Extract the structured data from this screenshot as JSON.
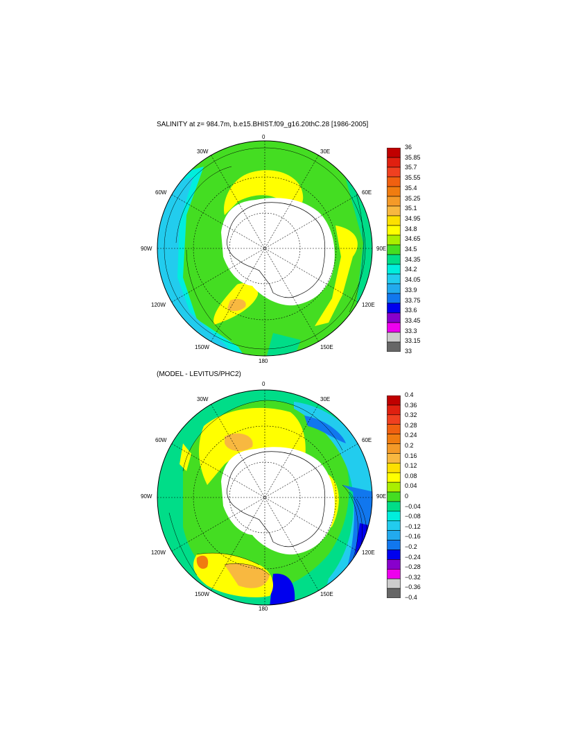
{
  "panel_top": {
    "title": "SALINITY at z= 984.7m, b.e15.BHIST.f09_g16.20thC.28 [1986-2005]",
    "lon_labels": {
      "n": "0",
      "s": "180",
      "w": "90W",
      "e": "90E",
      "nw": "30W",
      "ne": "30E",
      "wnw": "60W",
      "ene": "60E",
      "wsw": "120W",
      "ese": "120E",
      "sw": "150W",
      "se": "150E"
    },
    "colorbar": {
      "labels": [
        "36",
        "35.85",
        "35.7",
        "35.55",
        "35.4",
        "35.25",
        "35.1",
        "34.95",
        "34.8",
        "34.65",
        "34.5",
        "34.35",
        "34.2",
        "34.05",
        "33.9",
        "33.75",
        "33.6",
        "33.45",
        "33.3",
        "33.15",
        "33"
      ],
      "colors": [
        "#c00000",
        "#e02010",
        "#f04020",
        "#f06010",
        "#f07c10",
        "#f49a28",
        "#f8b840",
        "#fde000",
        "#ffff00",
        "#aaee00",
        "#44dd22",
        "#00dd88",
        "#00eedd",
        "#22ccee",
        "#22aaee",
        "#1177ee",
        "#0000ee",
        "#8800cc",
        "#ee00ee",
        "#cccccc",
        "#666666"
      ]
    }
  },
  "panel_bottom": {
    "title": "(MODEL - LEVITUS/PHC2)",
    "lon_labels": {
      "n": "0",
      "s": "180",
      "w": "90W",
      "e": "90E",
      "nw": "30W",
      "ne": "30E",
      "wnw": "60W",
      "ene": "60E",
      "wsw": "120W",
      "ese": "120E",
      "sw": "150W",
      "se": "150E"
    },
    "colorbar": {
      "labels": [
        "0.4",
        "0.36",
        "0.32",
        "0.28",
        "0.24",
        "0.2",
        "0.16",
        "0.12",
        "0.08",
        "0.04",
        "0",
        "−0.04",
        "−0.08",
        "−0.12",
        "−0.16",
        "−0.2",
        "−0.24",
        "−0.28",
        "−0.32",
        "−0.36",
        "−0.4"
      ],
      "colors": [
        "#c00000",
        "#e02010",
        "#f04020",
        "#f06010",
        "#f07c10",
        "#f49a28",
        "#f8b840",
        "#fde000",
        "#ffff00",
        "#aaee00",
        "#44dd22",
        "#00dd88",
        "#00eedd",
        "#22ccee",
        "#22aaee",
        "#1177ee",
        "#0000ee",
        "#8800cc",
        "#ee00ee",
        "#cccccc",
        "#666666"
      ]
    }
  }
}
